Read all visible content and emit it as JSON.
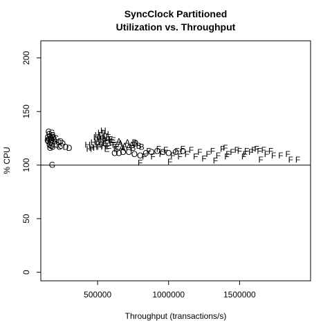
{
  "chart_data": {
    "type": "scatter",
    "title": "SyncClock Partitioned",
    "subtitle": "Utilization vs. Throughput",
    "xlabel": "Throughput (transactions/s)",
    "ylabel": "% CPU",
    "xlim": [
      100000,
      2000000
    ],
    "ylim": [
      -8,
      216
    ],
    "x_ticks": [
      500000,
      1000000,
      1500000
    ],
    "x_tick_labels": [
      "500000",
      "1000000",
      "1500000"
    ],
    "y_ticks": [
      0,
      50,
      100,
      150,
      200
    ],
    "y_tick_labels": [
      "0",
      "50",
      "100",
      "150",
      "200"
    ],
    "reference_line": {
      "orientation": "horizontal",
      "y": 100
    },
    "grid": false,
    "legend": "none",
    "point_color": "#000000",
    "marker": "letters",
    "points": [
      {
        "x": 155000,
        "y": 131,
        "label": "G"
      },
      {
        "x": 160000,
        "y": 129,
        "label": "G"
      },
      {
        "x": 165000,
        "y": 127,
        "label": "G"
      },
      {
        "x": 150000,
        "y": 126,
        "label": "G"
      },
      {
        "x": 170000,
        "y": 125,
        "label": "G"
      },
      {
        "x": 158000,
        "y": 124,
        "label": "G"
      },
      {
        "x": 175000,
        "y": 123,
        "label": "G"
      },
      {
        "x": 152000,
        "y": 122,
        "label": "G"
      },
      {
        "x": 168000,
        "y": 121,
        "label": "G"
      },
      {
        "x": 180000,
        "y": 120,
        "label": "G"
      },
      {
        "x": 162000,
        "y": 119,
        "label": "G"
      },
      {
        "x": 172000,
        "y": 118,
        "label": "G"
      },
      {
        "x": 185000,
        "y": 128,
        "label": "G"
      },
      {
        "x": 190000,
        "y": 126,
        "label": "G"
      },
      {
        "x": 195000,
        "y": 124,
        "label": "G"
      },
      {
        "x": 178000,
        "y": 130,
        "label": "G"
      },
      {
        "x": 148000,
        "y": 123,
        "label": "G"
      },
      {
        "x": 200000,
        "y": 122,
        "label": "G"
      },
      {
        "x": 182000,
        "y": 117,
        "label": "G"
      },
      {
        "x": 166000,
        "y": 116,
        "label": "G"
      },
      {
        "x": 180000,
        "y": 100,
        "label": "G"
      },
      {
        "x": 210000,
        "y": 119,
        "label": "C"
      },
      {
        "x": 225000,
        "y": 121,
        "label": "C"
      },
      {
        "x": 240000,
        "y": 118,
        "label": "C"
      },
      {
        "x": 205000,
        "y": 125,
        "label": "C"
      },
      {
        "x": 230000,
        "y": 117,
        "label": "C"
      },
      {
        "x": 255000,
        "y": 120,
        "label": "D"
      },
      {
        "x": 275000,
        "y": 117,
        "label": "D"
      },
      {
        "x": 300000,
        "y": 116,
        "label": "D"
      },
      {
        "x": 240000,
        "y": 122,
        "label": "D"
      },
      {
        "x": 430000,
        "y": 119,
        "label": "H"
      },
      {
        "x": 440000,
        "y": 115,
        "label": "H"
      },
      {
        "x": 470000,
        "y": 121,
        "label": "H"
      },
      {
        "x": 490000,
        "y": 126,
        "label": "H"
      },
      {
        "x": 500000,
        "y": 128,
        "label": "H"
      },
      {
        "x": 510000,
        "y": 124,
        "label": "H"
      },
      {
        "x": 520000,
        "y": 130,
        "label": "H"
      },
      {
        "x": 530000,
        "y": 127,
        "label": "H"
      },
      {
        "x": 540000,
        "y": 132,
        "label": "H"
      },
      {
        "x": 550000,
        "y": 125,
        "label": "H"
      },
      {
        "x": 480000,
        "y": 117,
        "label": "H"
      },
      {
        "x": 460000,
        "y": 116,
        "label": "H"
      },
      {
        "x": 505000,
        "y": 119,
        "label": "H"
      },
      {
        "x": 525000,
        "y": 121,
        "label": "H"
      },
      {
        "x": 545000,
        "y": 118,
        "label": "H"
      },
      {
        "x": 560000,
        "y": 129,
        "label": "H"
      },
      {
        "x": 570000,
        "y": 123,
        "label": "H"
      },
      {
        "x": 495000,
        "y": 122,
        "label": "H"
      },
      {
        "x": 515000,
        "y": 117,
        "label": "H"
      },
      {
        "x": 535000,
        "y": 124,
        "label": "H"
      },
      {
        "x": 555000,
        "y": 120,
        "label": "E"
      },
      {
        "x": 580000,
        "y": 118,
        "label": "E"
      },
      {
        "x": 600000,
        "y": 121,
        "label": "E"
      },
      {
        "x": 620000,
        "y": 119,
        "label": "E"
      },
      {
        "x": 640000,
        "y": 117,
        "label": "E"
      },
      {
        "x": 590000,
        "y": 124,
        "label": "E"
      },
      {
        "x": 610000,
        "y": 123,
        "label": "E"
      },
      {
        "x": 630000,
        "y": 115,
        "label": "E"
      },
      {
        "x": 575000,
        "y": 126,
        "label": "E"
      },
      {
        "x": 565000,
        "y": 115,
        "label": "E"
      },
      {
        "x": 660000,
        "y": 120,
        "label": "A"
      },
      {
        "x": 690000,
        "y": 118,
        "label": "A"
      },
      {
        "x": 720000,
        "y": 117,
        "label": "A"
      },
      {
        "x": 650000,
        "y": 122,
        "label": "A"
      },
      {
        "x": 680000,
        "y": 115,
        "label": "A"
      },
      {
        "x": 710000,
        "y": 121,
        "label": "A"
      },
      {
        "x": 740000,
        "y": 119,
        "label": "A"
      },
      {
        "x": 670000,
        "y": 116,
        "label": "A"
      },
      {
        "x": 770000,
        "y": 120,
        "label": "B"
      },
      {
        "x": 790000,
        "y": 118,
        "label": "B"
      },
      {
        "x": 750000,
        "y": 116,
        "label": "B"
      },
      {
        "x": 810000,
        "y": 117,
        "label": "B"
      },
      {
        "x": 760000,
        "y": 121,
        "label": "B"
      },
      {
        "x": 620000,
        "y": 111,
        "label": "O"
      },
      {
        "x": 650000,
        "y": 111,
        "label": "O"
      },
      {
        "x": 680000,
        "y": 112,
        "label": "O"
      },
      {
        "x": 720000,
        "y": 112,
        "label": "O"
      },
      {
        "x": 760000,
        "y": 110,
        "label": "O"
      },
      {
        "x": 800000,
        "y": 109,
        "label": "O"
      },
      {
        "x": 840000,
        "y": 111,
        "label": "O"
      },
      {
        "x": 880000,
        "y": 112,
        "label": "O"
      },
      {
        "x": 920000,
        "y": 113,
        "label": "O"
      },
      {
        "x": 960000,
        "y": 112,
        "label": "O"
      },
      {
        "x": 1000000,
        "y": 111,
        "label": "O"
      },
      {
        "x": 1050000,
        "y": 112,
        "label": "O"
      },
      {
        "x": 1100000,
        "y": 113,
        "label": "O"
      },
      {
        "x": 800000,
        "y": 102,
        "label": "F"
      },
      {
        "x": 830000,
        "y": 108,
        "label": "F"
      },
      {
        "x": 860000,
        "y": 113,
        "label": "F"
      },
      {
        "x": 890000,
        "y": 108,
        "label": "F"
      },
      {
        "x": 930000,
        "y": 115,
        "label": "F"
      },
      {
        "x": 950000,
        "y": 110,
        "label": "F"
      },
      {
        "x": 980000,
        "y": 114,
        "label": "F"
      },
      {
        "x": 1010000,
        "y": 103,
        "label": "F"
      },
      {
        "x": 1030000,
        "y": 109,
        "label": "F"
      },
      {
        "x": 1060000,
        "y": 113,
        "label": "F"
      },
      {
        "x": 1080000,
        "y": 108,
        "label": "F"
      },
      {
        "x": 1100000,
        "y": 115,
        "label": "F"
      },
      {
        "x": 1130000,
        "y": 110,
        "label": "F"
      },
      {
        "x": 1160000,
        "y": 114,
        "label": "F"
      },
      {
        "x": 1190000,
        "y": 108,
        "label": "F"
      },
      {
        "x": 1220000,
        "y": 112,
        "label": "F"
      },
      {
        "x": 1250000,
        "y": 106,
        "label": "F"
      },
      {
        "x": 1280000,
        "y": 110,
        "label": "F"
      },
      {
        "x": 1310000,
        "y": 113,
        "label": "F"
      },
      {
        "x": 1330000,
        "y": 104,
        "label": "F"
      },
      {
        "x": 1350000,
        "y": 109,
        "label": "F"
      },
      {
        "x": 1380000,
        "y": 115,
        "label": "F"
      },
      {
        "x": 1400000,
        "y": 116,
        "label": "F"
      },
      {
        "x": 1420000,
        "y": 110,
        "label": "F"
      },
      {
        "x": 1450000,
        "y": 112,
        "label": "F"
      },
      {
        "x": 1480000,
        "y": 114,
        "label": "F"
      },
      {
        "x": 1500000,
        "y": 113,
        "label": "F"
      },
      {
        "x": 1530000,
        "y": 108,
        "label": "F"
      },
      {
        "x": 1550000,
        "y": 113,
        "label": "F"
      },
      {
        "x": 1580000,
        "y": 112,
        "label": "F"
      },
      {
        "x": 1600000,
        "y": 114,
        "label": "F"
      },
      {
        "x": 1620000,
        "y": 115,
        "label": "F"
      },
      {
        "x": 1640000,
        "y": 113,
        "label": "F"
      },
      {
        "x": 1650000,
        "y": 105,
        "label": "F"
      },
      {
        "x": 1670000,
        "y": 114,
        "label": "F"
      },
      {
        "x": 1690000,
        "y": 110,
        "label": "F"
      },
      {
        "x": 1720000,
        "y": 113,
        "label": "F"
      },
      {
        "x": 1740000,
        "y": 109,
        "label": "F"
      },
      {
        "x": 1790000,
        "y": 109,
        "label": "F"
      },
      {
        "x": 1840000,
        "y": 110,
        "label": "F"
      },
      {
        "x": 1860000,
        "y": 105,
        "label": "F"
      },
      {
        "x": 1910000,
        "y": 105,
        "label": "F"
      },
      {
        "x": 1410000,
        "y": 108,
        "label": "F"
      },
      {
        "x": 1540000,
        "y": 110,
        "label": "F"
      }
    ]
  }
}
